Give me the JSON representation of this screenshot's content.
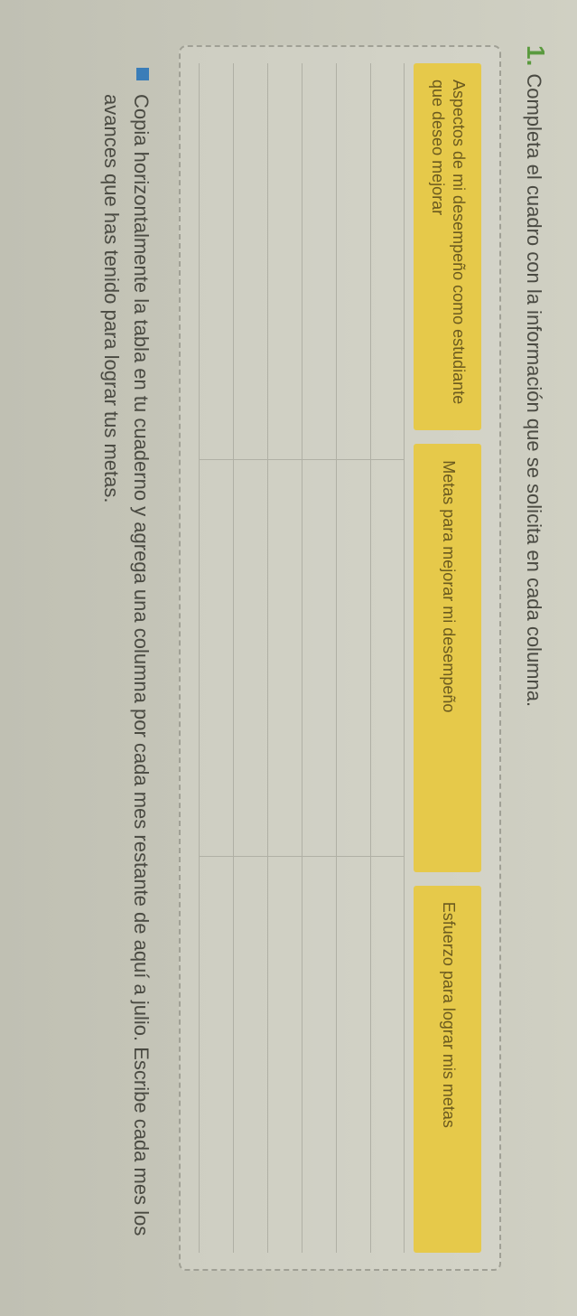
{
  "exercise": {
    "number": "1.",
    "instruction": "Completa el cuadro con la información que se solicita en cada columna."
  },
  "table": {
    "headers": [
      "Aspectos de mi desempeño como estudiante que deseo mejorar",
      "Metas para mejorar mi desempeño",
      "Esfuerzo para lograr mis metas"
    ],
    "row_count": 6
  },
  "bullet": {
    "text": "Copia horizontalmente la tabla en tu cuaderno y agrega una columna por cada mes restante de aquí a julio. Escribe cada mes los avances que has tenido para lograr tus metas."
  },
  "colors": {
    "number_color": "#5a9a3e",
    "header_bg": "#e6c94a",
    "header_text": "#6b5a1f",
    "bullet_color": "#3a7db8",
    "body_text": "#4a4a42",
    "page_bg": "#c8c8bb",
    "border_color": "#a0a095",
    "row_border": "#b0b0a5"
  },
  "typography": {
    "number_size": 28,
    "instruction_size": 22,
    "header_cell_size": 18,
    "bullet_text_size": 22
  }
}
